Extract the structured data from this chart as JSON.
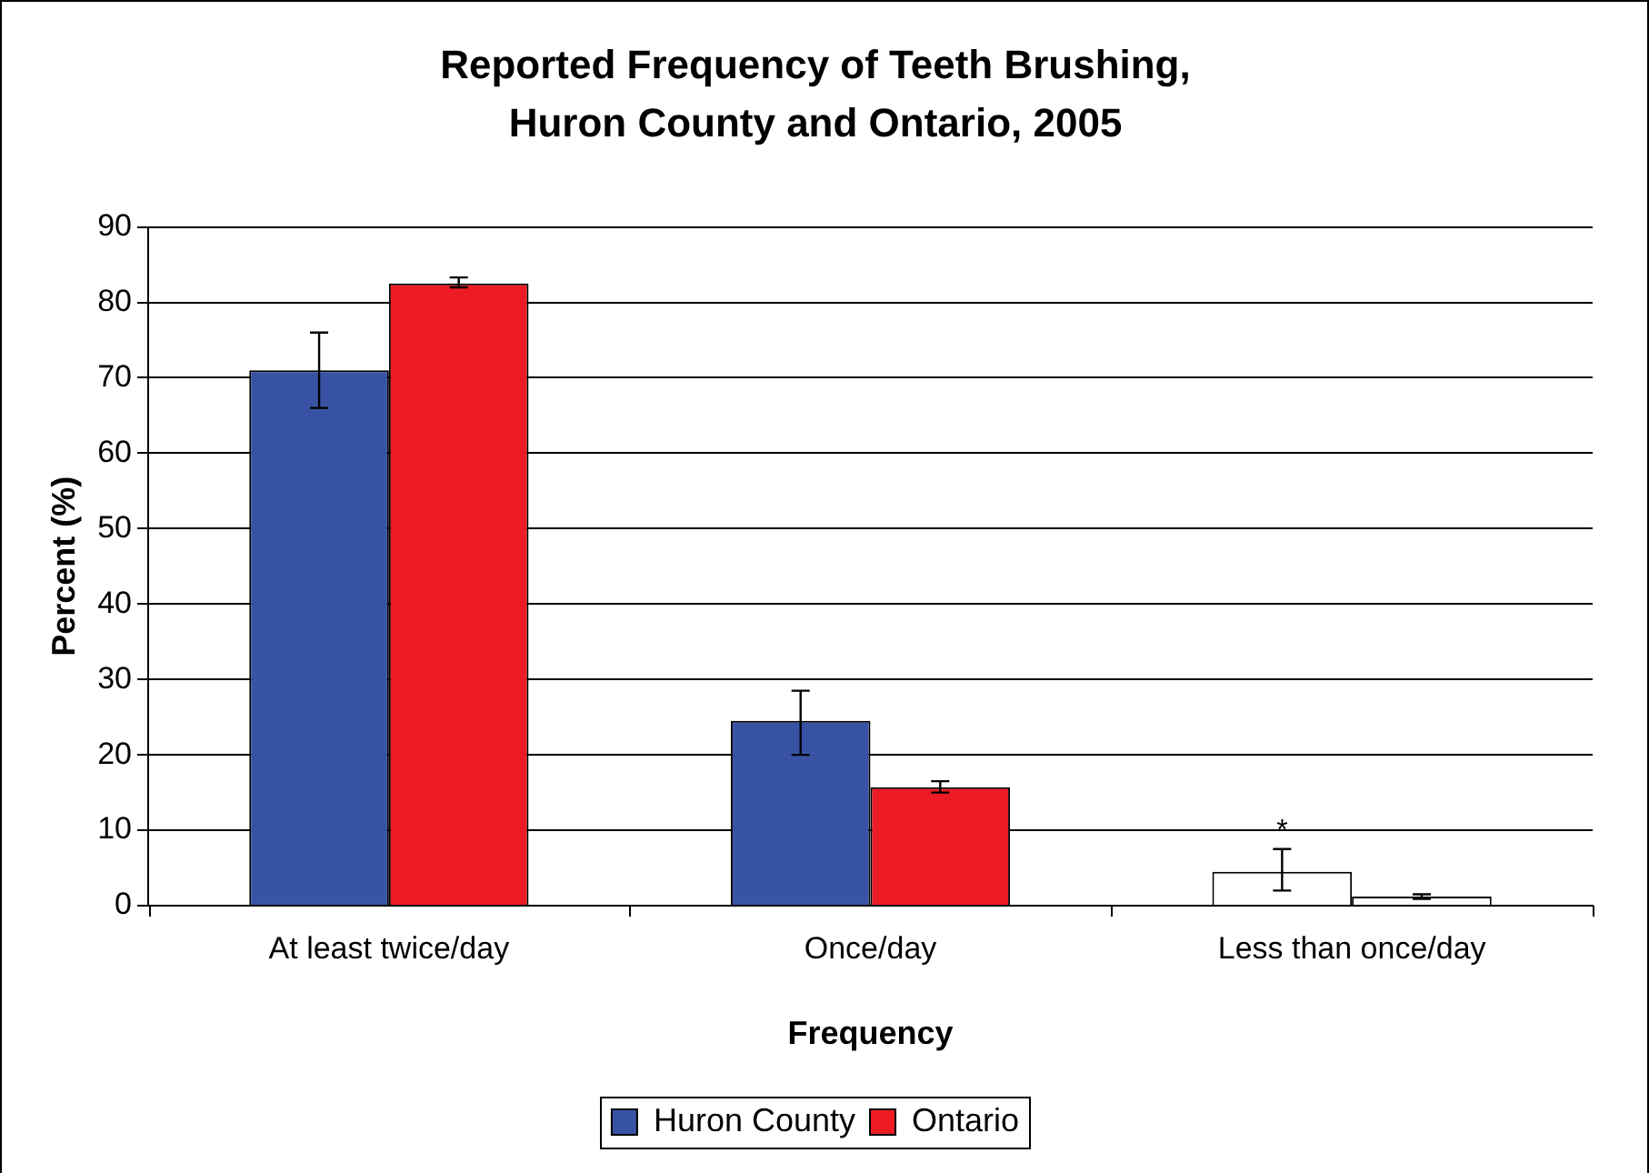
{
  "chart_data": {
    "type": "bar",
    "title": [
      "Reported Frequency of Teeth Brushing,",
      "Huron County and Ontario, 2005"
    ],
    "xlabel": "Frequency",
    "ylabel": "Percent (%)",
    "categories": [
      "At least twice/day",
      "Once/day",
      "Less than once/day"
    ],
    "series": [
      {
        "name": "Huron County",
        "color": "#3953a4",
        "colors": [
          "#3953a4",
          "#3953a4",
          "#ffffff"
        ],
        "values": [
          71,
          24.5,
          4.5
        ],
        "errors": [
          [
            66,
            76
          ],
          [
            20,
            28.5
          ],
          [
            2,
            7.5
          ]
        ]
      },
      {
        "name": "Ontario",
        "color": "#ed1c24",
        "colors": [
          "#ed1c24",
          "#ed1c24",
          "#ffffff"
        ],
        "values": [
          82.5,
          15.7,
          1.2
        ],
        "errors": [
          [
            82,
            83.3
          ],
          [
            15,
            16.5
          ],
          [
            0.9,
            1.5
          ]
        ]
      }
    ],
    "annotations": [
      {
        "text": "*",
        "x": "Less than once/day",
        "y": 4.5
      }
    ],
    "ylim": [
      0,
      90
    ],
    "yticks": [
      0,
      10,
      20,
      30,
      40,
      50,
      60,
      70,
      80,
      90
    ],
    "grid": "y",
    "legend": "bottom"
  }
}
